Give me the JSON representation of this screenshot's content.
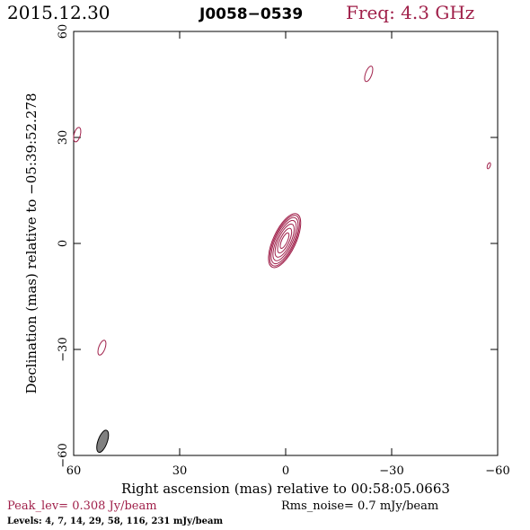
{
  "header": {
    "date": "2015.12.30",
    "source": "J0058−0539",
    "freq": "Freq: 4.3 GHz"
  },
  "footer": {
    "peak": "Peak_lev=  0.308 Jy/beam",
    "rms": "Rms_noise=  0.7 mJy/beam",
    "levels": "Levels:  4,  7,  14,  29,  58,  116,  231  mJy/beam"
  },
  "colors": {
    "accent": "#a0204a",
    "axis": "#000000",
    "beam_fill": "#808080"
  },
  "chart_data": {
    "type": "contour",
    "xlabel": "Right ascension (mas) relative to 00:58:05.0663",
    "ylabel": "Declination (mas) relative to −05:39:52.278",
    "xlim": [
      60,
      -60
    ],
    "ylim": [
      -60,
      60
    ],
    "xticks": [
      60,
      30,
      0,
      -30,
      -60
    ],
    "yticks": [
      -60,
      -30,
      0,
      30,
      60
    ],
    "xtick_labels": [
      "60",
      "30",
      "0",
      "−30",
      "−60"
    ],
    "ytick_labels": [
      "−60",
      "−30",
      "0",
      "30",
      "60"
    ],
    "core": {
      "x": 0.3,
      "y": 0.8,
      "pa_deg": 25,
      "levels": [
        {
          "a": 3.2,
          "b": 8.3
        },
        {
          "a": 2.9,
          "b": 7.8
        },
        {
          "a": 2.6,
          "b": 7.1
        },
        {
          "a": 2.2,
          "b": 6.2
        },
        {
          "a": 1.8,
          "b": 5.1
        },
        {
          "a": 1.3,
          "b": 3.8
        },
        {
          "a": 0.8,
          "b": 2.4
        }
      ]
    },
    "islands": [
      {
        "x": 59.0,
        "y": 30.8,
        "a": 0.9,
        "b": 2.1,
        "pa_deg": 15
      },
      {
        "x": -23.5,
        "y": 48.0,
        "a": 0.9,
        "b": 2.3,
        "pa_deg": 20
      },
      {
        "x": -57.5,
        "y": 22.0,
        "a": 0.4,
        "b": 0.9,
        "pa_deg": 20
      },
      {
        "x": 52.0,
        "y": -29.5,
        "a": 0.9,
        "b": 2.2,
        "pa_deg": 20
      }
    ],
    "beam": {
      "x": 51.8,
      "y": -56.0,
      "a": 1.3,
      "b": 3.3,
      "pa_deg": 20
    }
  }
}
